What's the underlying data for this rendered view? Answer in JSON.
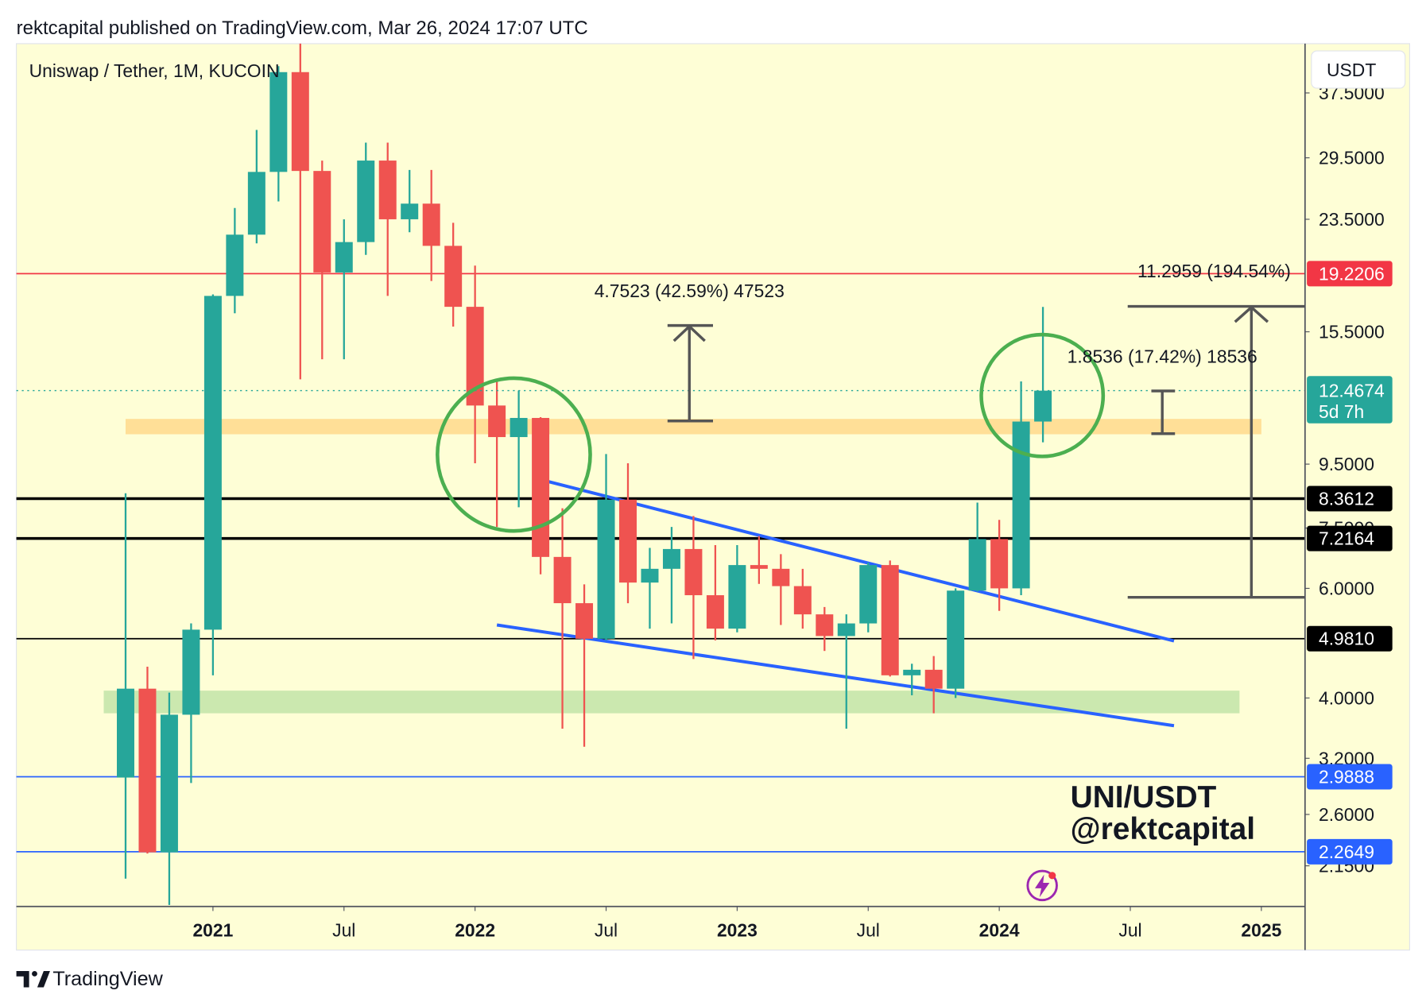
{
  "header": "rektcapital published on TradingView.com, Mar 26, 2024 17:07 UTC",
  "footer": "TradingView",
  "currency_button": "USDT",
  "chart_data": {
    "type": "candlestick",
    "title": "Uniswap / Tether, 1M, KUCOIN",
    "x": [
      "2020-09",
      "2020-10",
      "2020-11",
      "2020-12",
      "2021-01",
      "2021-02",
      "2021-03",
      "2021-04",
      "2021-05",
      "2021-06",
      "2021-07",
      "2021-08",
      "2021-09",
      "2021-10",
      "2021-11",
      "2021-12",
      "2022-01",
      "2022-02",
      "2022-03",
      "2022-04",
      "2022-05",
      "2022-06",
      "2022-07",
      "2022-08",
      "2022-09",
      "2022-10",
      "2022-11",
      "2022-12",
      "2023-01",
      "2023-02",
      "2023-03",
      "2023-04",
      "2023-05",
      "2023-06",
      "2023-07",
      "2023-08",
      "2023-09",
      "2023-10",
      "2023-11",
      "2023-12",
      "2024-01",
      "2024-02",
      "2024-03"
    ],
    "open": [
      2.98,
      4.14,
      2.26,
      3.76,
      5.15,
      17.7,
      22.2,
      28.0,
      40.5,
      28.1,
      19.3,
      21.6,
      29.2,
      23.5,
      24.9,
      21.3,
      17.0,
      11.8,
      10.5,
      11.27,
      6.74,
      5.68,
      4.98,
      8.33,
      6.13,
      6.45,
      6.94,
      5.85,
      5.17,
      6.54,
      6.45,
      6.05,
      5.45,
      5.03,
      5.27,
      6.54,
      4.35,
      4.44,
      4.14,
      5.95,
      7.2,
      6.0,
      11.12
    ],
    "high": [
      8.53,
      4.49,
      4.08,
      5.27,
      17.8,
      24.5,
      32.7,
      41.4,
      45.0,
      29.2,
      23.5,
      31.2,
      31.2,
      28.2,
      28.2,
      23.2,
      19.8,
      12.9,
      12.47,
      11.3,
      8.07,
      6.09,
      9.86,
      9.53,
      6.97,
      7.53,
      7.84,
      7.04,
      7.04,
      7.28,
      6.81,
      6.45,
      5.6,
      5.45,
      6.6,
      6.65,
      4.54,
      4.67,
      6.0,
      8.24,
      7.73,
      12.9,
      16.99
    ],
    "low": [
      2.05,
      2.25,
      1.86,
      2.92,
      4.35,
      16.6,
      21.5,
      25.1,
      13.0,
      14.0,
      14.0,
      20.6,
      17.7,
      22.4,
      18.7,
      15.8,
      9.53,
      7.53,
      8.1,
      6.32,
      3.57,
      3.34,
      4.95,
      5.68,
      5.17,
      5.27,
      4.62,
      4.95,
      5.1,
      6.1,
      5.24,
      5.17,
      4.76,
      3.57,
      5.1,
      4.33,
      4.04,
      3.78,
      4.0,
      5.93,
      5.52,
      5.85,
      10.3
    ],
    "close": [
      4.14,
      2.26,
      3.76,
      5.15,
      17.7,
      22.2,
      28.0,
      40.5,
      28.1,
      19.3,
      21.6,
      29.2,
      23.5,
      24.9,
      21.3,
      17.0,
      11.8,
      10.5,
      11.27,
      6.74,
      5.68,
      4.98,
      8.33,
      6.13,
      6.45,
      6.94,
      5.85,
      5.17,
      6.54,
      6.45,
      6.05,
      5.45,
      5.03,
      5.27,
      6.54,
      4.35,
      4.44,
      4.14,
      5.95,
      7.2,
      6.0,
      11.12,
      12.4674
    ],
    "up_color": "#26a69a",
    "down_color": "#ef5350",
    "log_scale": true,
    "grid": false,
    "xlim": [
      "2020-04",
      "2025-03"
    ],
    "xticks": [
      {
        "value": "2021-01",
        "label": "2021"
      },
      {
        "value": "2021-07",
        "label": "Jul"
      },
      {
        "value": "2022-01",
        "label": "2022"
      },
      {
        "value": "2022-07",
        "label": "Jul"
      },
      {
        "value": "2023-01",
        "label": "2023"
      },
      {
        "value": "2023-07",
        "label": "Jul"
      },
      {
        "value": "2024-01",
        "label": "2024"
      },
      {
        "value": "2024-07",
        "label": "Jul"
      },
      {
        "value": "2025-01",
        "label": "2025"
      }
    ],
    "ylim": [
      1.85,
      45
    ],
    "yticks": [
      {
        "value": 37.5,
        "label": "37.5000"
      },
      {
        "value": 29.5,
        "label": "29.5000"
      },
      {
        "value": 23.5,
        "label": "23.5000"
      },
      {
        "value": 15.5,
        "label": "15.5000"
      },
      {
        "value": 9.5,
        "label": "9.5000"
      },
      {
        "value": 7.5,
        "label": "7.5000"
      },
      {
        "value": 6,
        "label": "6.0000"
      },
      {
        "value": 4,
        "label": "4.0000"
      },
      {
        "value": 3.2,
        "label": "3.2000"
      },
      {
        "value": 2.6,
        "label": "2.6000"
      },
      {
        "value": 2.15,
        "label": "2.1500"
      }
    ],
    "countdown": "5d 7h",
    "levels": [
      {
        "value": 19.2206,
        "color": "#f23645",
        "width": 1.5
      },
      {
        "value": 8.3612,
        "color": "#000000",
        "width": 3
      },
      {
        "value": 7.2164,
        "color": "#000000",
        "width": 3
      },
      {
        "value": 4.981,
        "label": "4.9810",
        "color": "#000000",
        "width": 1.5
      },
      {
        "value": 2.9888,
        "color": "#2962ff",
        "width": 1.5
      },
      {
        "value": 2.2649,
        "color": "#2962ff",
        "width": 1.5
      }
    ],
    "zones": [
      {
        "from": "2020-09",
        "to": "2025-01",
        "low": 10.61,
        "high": 11.23,
        "color": "#ffd98c"
      },
      {
        "from": "2020-08",
        "to": "2024-12",
        "low": 3.78,
        "high": 4.11,
        "color": "#c2e4a8"
      }
    ],
    "trendlines": [
      {
        "color": "#2962ff",
        "points": [
          {
            "x": "2022-04",
            "y": 8.97
          },
          {
            "x": "2024-09",
            "y": 4.94
          }
        ]
      },
      {
        "color": "#2962ff",
        "points": [
          {
            "x": "2022-02",
            "y": 5.24
          },
          {
            "x": "2024-09",
            "y": 3.61
          }
        ]
      }
    ],
    "annotations": [
      "4.7523 (42.59%) 47523",
      "1.8536 (17.42%) 18536",
      "11.2959 (194.54%)"
    ],
    "watermark": [
      "UNI/USDT",
      "@rektcapital"
    ]
  }
}
